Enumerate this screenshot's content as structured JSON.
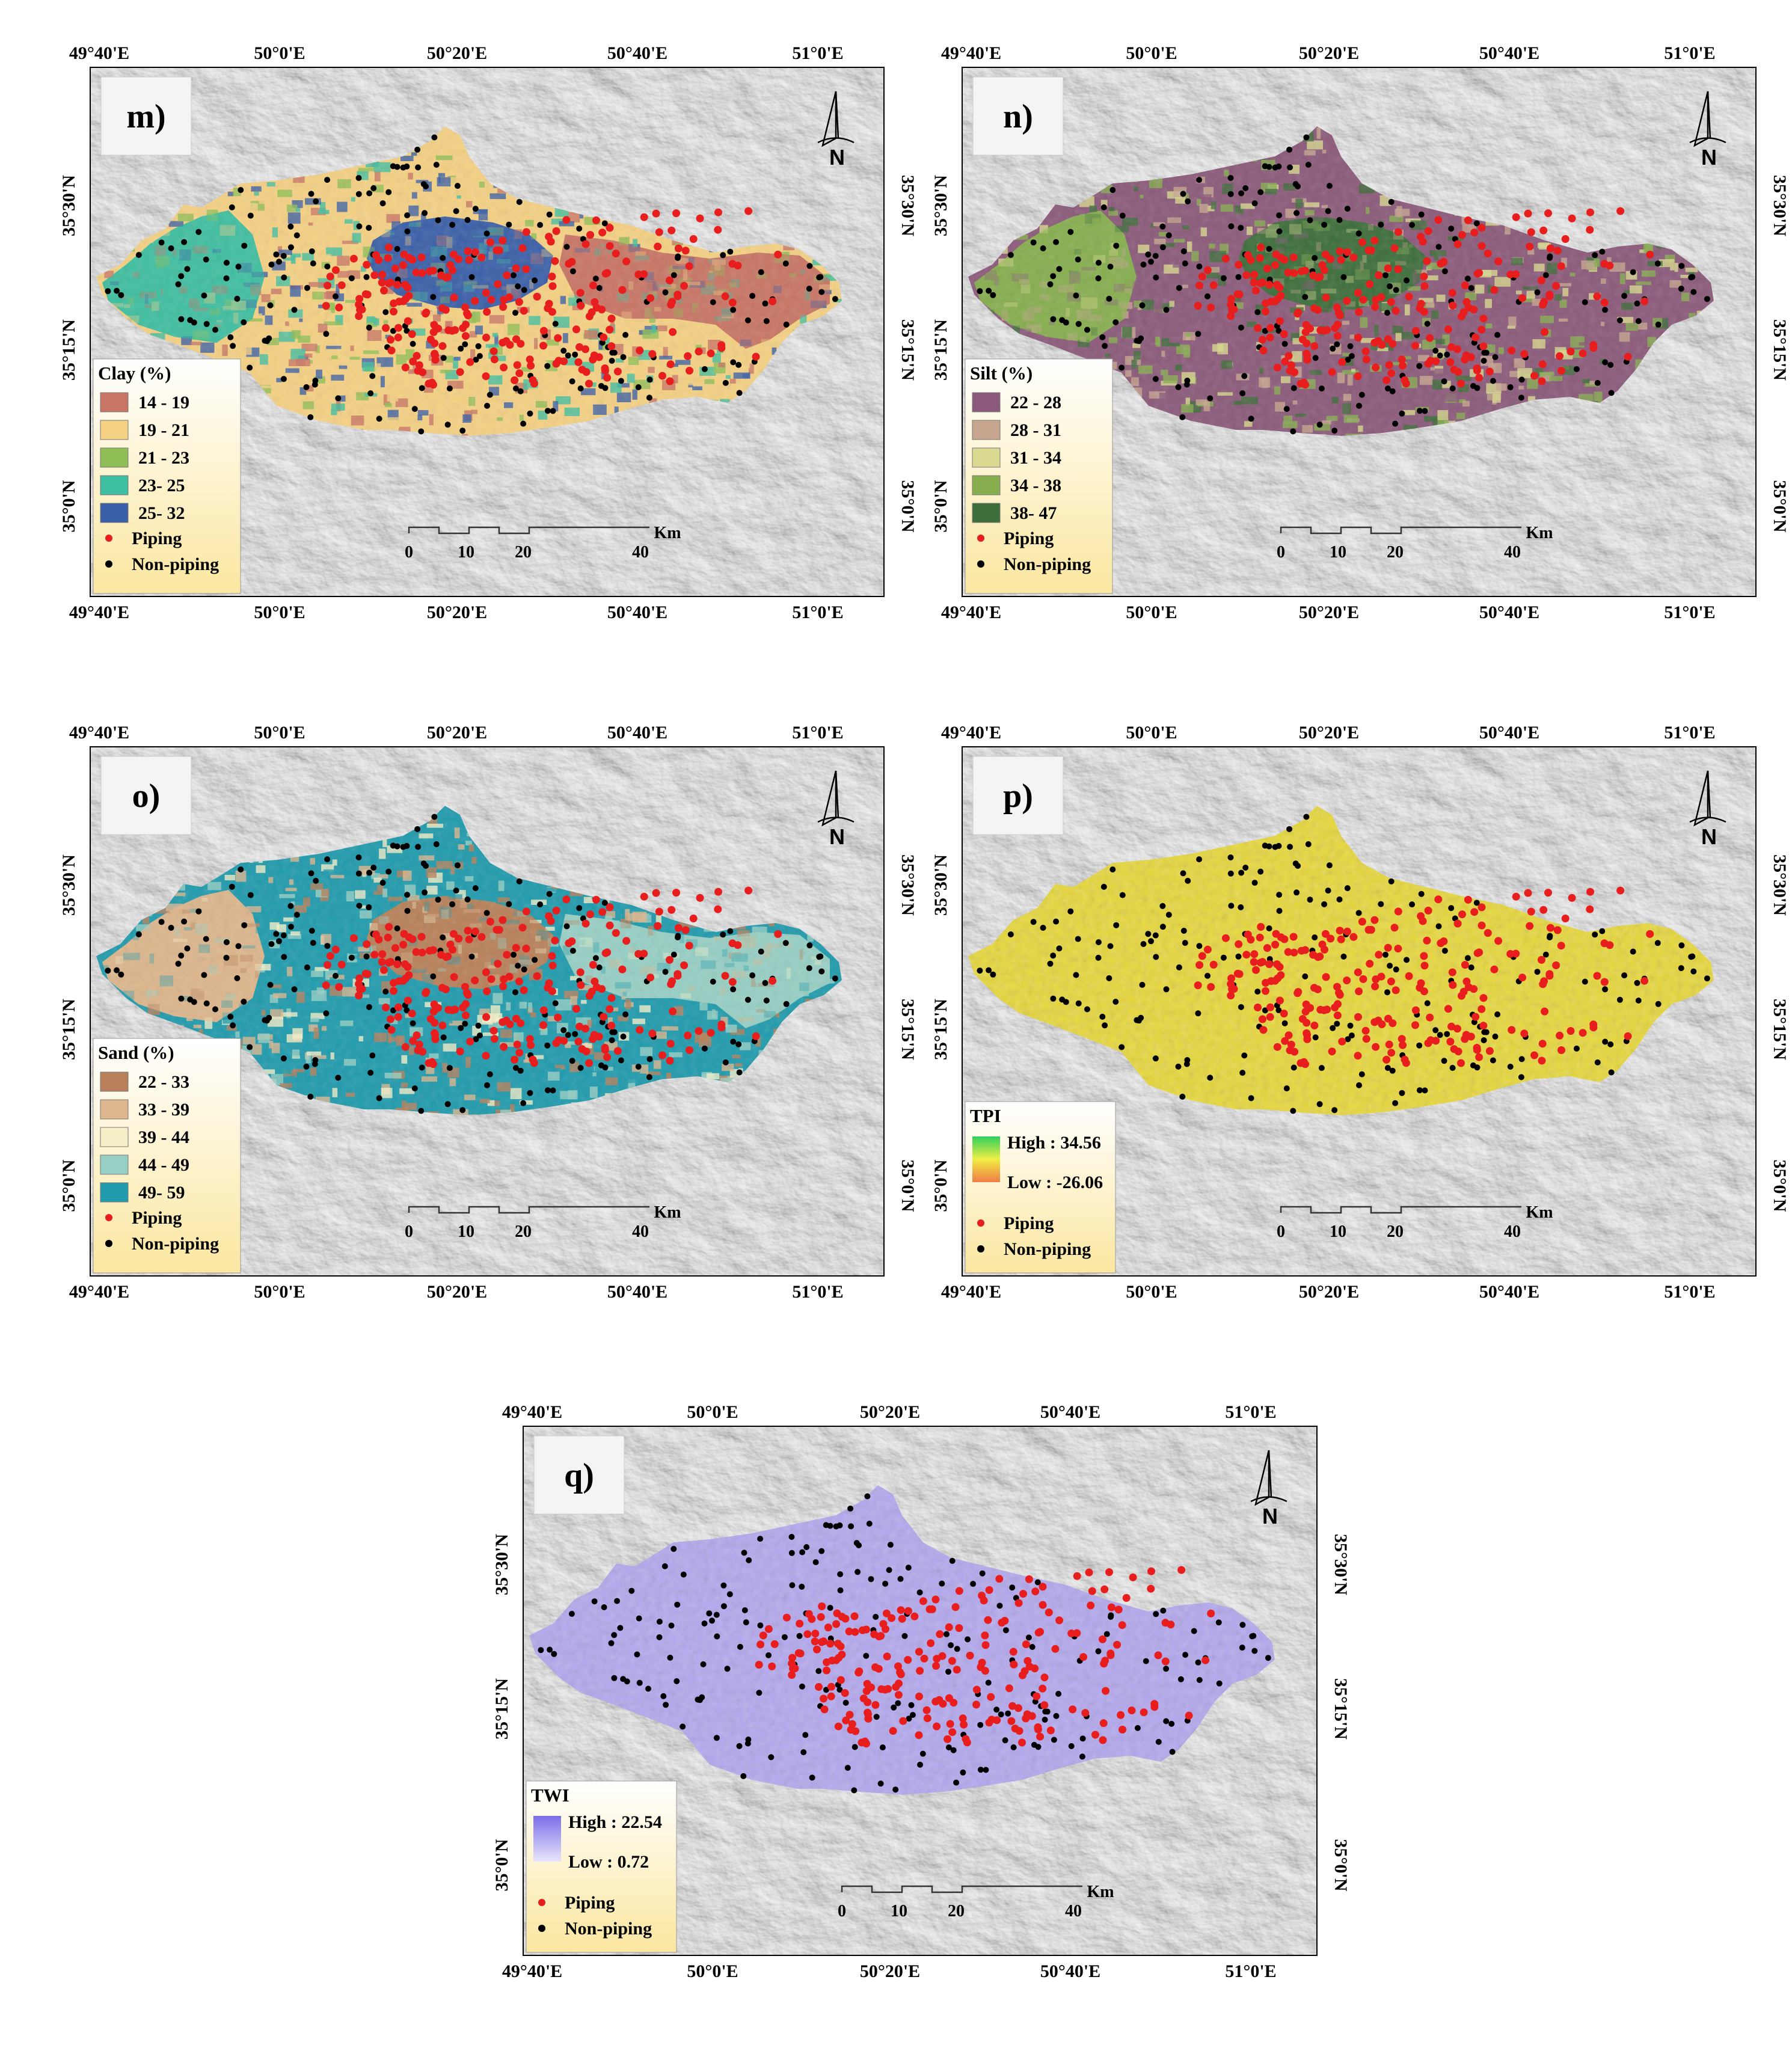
{
  "coordinates": {
    "lon_ticks": [
      "49°40'E",
      "50°0'E",
      "50°20'E",
      "50°40'E",
      "51°0'E"
    ],
    "lat_ticks": [
      "35°30'N",
      "35°15'N",
      "35°0'N"
    ]
  },
  "north_arrow": {
    "label": "N",
    "icon": "north-arrow-icon"
  },
  "scale_bar": {
    "ticks": [
      "0",
      "10",
      "20",
      "40"
    ],
    "unit": "Km"
  },
  "points_legend": {
    "piping_label": "Piping",
    "non_piping_label": "Non-piping",
    "piping_color": "#e81e1e",
    "non_piping_color": "#000000"
  },
  "panels": {
    "m": {
      "label": "m)",
      "legend_title": "Clay (%)",
      "classes": [
        {
          "label": "14 - 19",
          "color": "#c97565"
        },
        {
          "label": "19 - 21",
          "color": "#f5d183"
        },
        {
          "label": "21 - 23",
          "color": "#8fbf56"
        },
        {
          "label": "23- 25",
          "color": "#3fbfa1"
        },
        {
          "label": "25- 32",
          "color": "#3a5fa8"
        }
      ]
    },
    "n": {
      "label": "n)",
      "legend_title": "Silt (%)",
      "classes": [
        {
          "label": "22 - 28",
          "color": "#8b5a7a"
        },
        {
          "label": "28 - 31",
          "color": "#c7a58f"
        },
        {
          "label": "31 - 34",
          "color": "#d9d98f"
        },
        {
          "label": "34 - 38",
          "color": "#86ae4f"
        },
        {
          "label": "38- 47",
          "color": "#3d6e3a"
        }
      ]
    },
    "o": {
      "label": "o)",
      "legend_title": "Sand (%)",
      "classes": [
        {
          "label": "22 - 33",
          "color": "#b8805a"
        },
        {
          "label": "33 - 39",
          "color": "#ddb68d"
        },
        {
          "label": "39 - 44",
          "color": "#f5f0c8"
        },
        {
          "label": "44 - 49",
          "color": "#97cfc4"
        },
        {
          "label": "49- 59",
          "color": "#1f9bad"
        }
      ]
    },
    "p": {
      "label": "p)",
      "legend_title": "TPI",
      "high_label": "High : 34.56",
      "low_label": "Low : -26.06",
      "ramp_colors": [
        "#2fd05b",
        "#f0ee44",
        "#f07b45"
      ],
      "fill_color": "#e8d83a"
    },
    "q": {
      "label": "q)",
      "legend_title": "TWI",
      "high_label": "High : 22.54",
      "low_label": "Low : 0.72",
      "ramp_colors": [
        "#7a6ee8",
        "#e8e6fb"
      ],
      "fill_color": "#b3a8ef"
    }
  }
}
